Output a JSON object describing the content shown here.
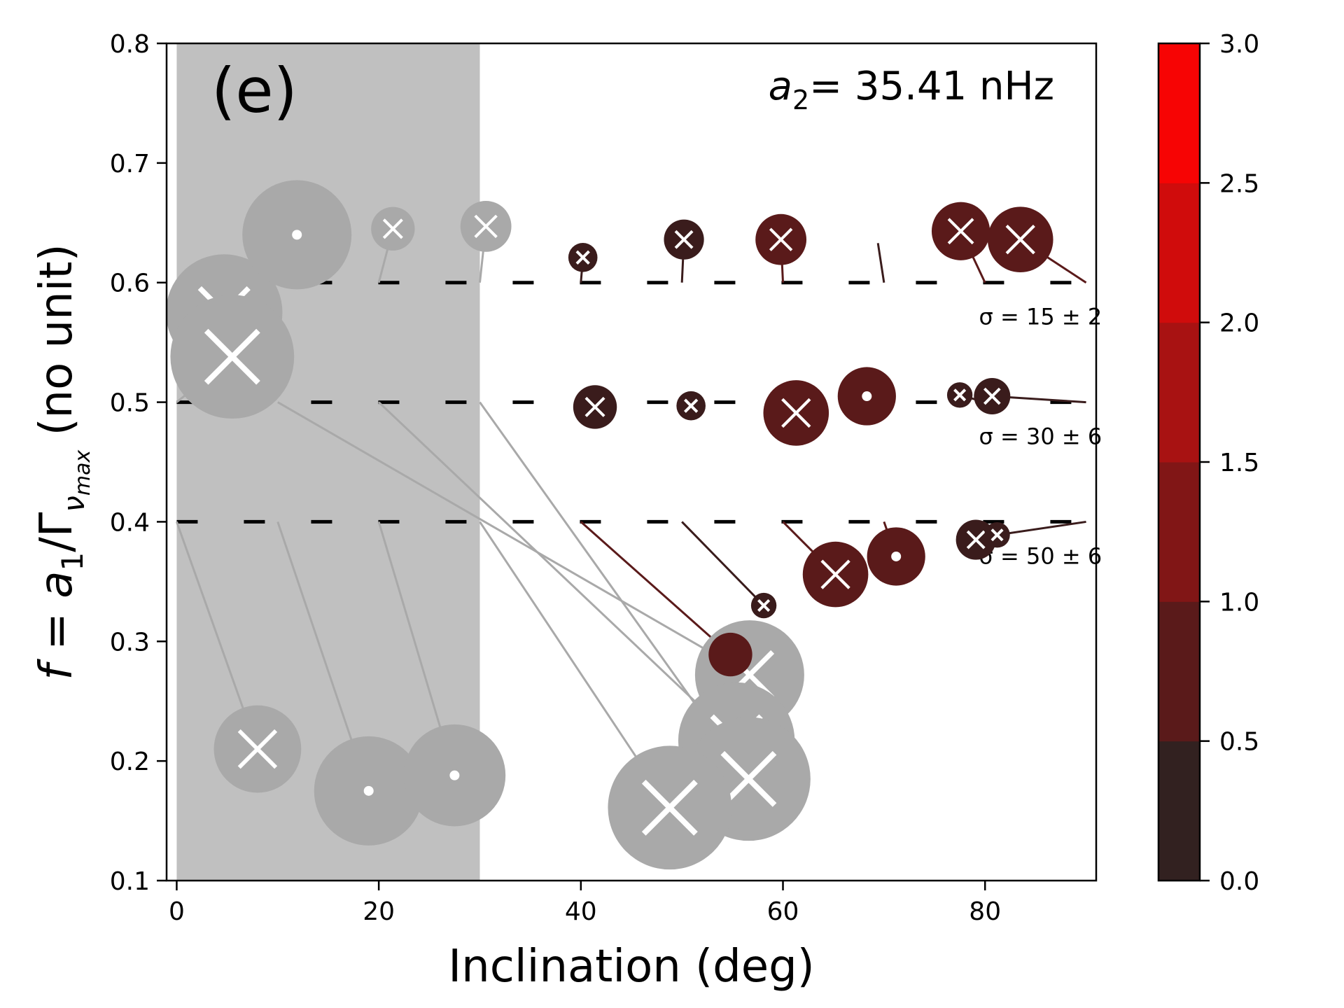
{
  "chart_data": {
    "type": "scatter",
    "panel_label": "(e)",
    "parameter_label": {
      "symbol": "a",
      "subscript": "2",
      "text": "= 35.41 nHz"
    },
    "xlabel": "Inclination (deg)",
    "ylabel": {
      "prefix": "f = a",
      "sub1": "1",
      "mid": "/Γ",
      "sub2": "ν",
      "sub3": "max",
      "suffix": "  (no unit)"
    },
    "xlim": [
      -1,
      91
    ],
    "ylim": [
      0.1,
      0.8
    ],
    "xticks": [
      "0",
      "20",
      "40",
      "60",
      "80"
    ],
    "yticks": [
      "0.1",
      "0.2",
      "0.3",
      "0.4",
      "0.5",
      "0.6",
      "0.7",
      "0.8"
    ],
    "excluded_region": {
      "x_start": 0,
      "x_end": 30,
      "color": "#c0c0c0"
    },
    "reference_lines": [
      {
        "y": 0.6,
        "label": "σ = 15 ± 2"
      },
      {
        "y": 0.5,
        "label": "σ = 30 ± 6"
      },
      {
        "y": 0.4,
        "label": "σ = 50 ± 6"
      }
    ],
    "colorbar": {
      "range": [
        0,
        3
      ],
      "ticks": [
        "0.0",
        "0.5",
        "1.0",
        "1.5",
        "2.0",
        "2.5",
        "3.0"
      ],
      "colors": [
        "#322120",
        "#5a1a1a",
        "#811616",
        "#a81212",
        "#d00c0c",
        "#f70404"
      ]
    },
    "points": [
      {
        "true_x": 0,
        "true_y": 0.6,
        "x": 4.7,
        "y": 0.575,
        "size": 3.2,
        "marker": "x",
        "color": "#a9a9a9"
      },
      {
        "true_x": 0,
        "true_y": 0.5,
        "x": 5.5,
        "y": 0.538,
        "size": 3.4,
        "marker": "x",
        "color": "#a9a9a9"
      },
      {
        "true_x": 0,
        "true_y": 0.4,
        "x": 8.0,
        "y": 0.21,
        "size": 2.4,
        "marker": "x",
        "color": "#a9a9a9"
      },
      {
        "true_x": 10,
        "true_y": 0.6,
        "x": 11.9,
        "y": 0.64,
        "size": 3.0,
        "marker": "dot",
        "color": "#a9a9a9"
      },
      {
        "true_x": 10,
        "true_y": 0.5,
        "x": 56.7,
        "y": 0.272,
        "size": 3.0,
        "marker": "x",
        "color": "#a9a9a9"
      },
      {
        "true_x": 10,
        "true_y": 0.4,
        "x": 19.0,
        "y": 0.175,
        "size": 3.0,
        "marker": "dot",
        "color": "#a9a9a9"
      },
      {
        "true_x": 20,
        "true_y": 0.6,
        "x": 21.4,
        "y": 0.645,
        "size": 1.2,
        "marker": "x",
        "color": "#a9a9a9"
      },
      {
        "true_x": 20,
        "true_y": 0.5,
        "x": 55.4,
        "y": 0.217,
        "size": 3.2,
        "marker": "x",
        "color": "#a9a9a9"
      },
      {
        "true_x": 20,
        "true_y": 0.4,
        "x": 27.5,
        "y": 0.188,
        "size": 2.8,
        "marker": "dot",
        "color": "#a9a9a9"
      },
      {
        "true_x": 30,
        "true_y": 0.6,
        "x": 30.6,
        "y": 0.647,
        "size": 1.4,
        "marker": "x",
        "color": "#a9a9a9"
      },
      {
        "true_x": 30,
        "true_y": 0.5,
        "x": 56.6,
        "y": 0.185,
        "size": 3.4,
        "marker": "x",
        "color": "#a9a9a9"
      },
      {
        "true_x": 30,
        "true_y": 0.4,
        "x": 48.8,
        "y": 0.161,
        "size": 3.4,
        "marker": "x",
        "color": "#a9a9a9"
      },
      {
        "true_x": 40,
        "true_y": 0.6,
        "x": 40.2,
        "y": 0.621,
        "size": 0.8,
        "marker": "x",
        "color": "#3a1c1c"
      },
      {
        "true_x": 40,
        "true_y": 0.5,
        "x": 41.4,
        "y": 0.496,
        "size": 1.2,
        "marker": "x",
        "color": "#3a1c1c"
      },
      {
        "true_x": 40,
        "true_y": 0.4,
        "x": 54.8,
        "y": 0.289,
        "size": 1.2,
        "marker": "none",
        "color": "#5a1a1a"
      },
      {
        "true_x": 50,
        "true_y": 0.6,
        "x": 50.2,
        "y": 0.636,
        "size": 1.1,
        "marker": "x",
        "color": "#3a1c1c"
      },
      {
        "true_x": 50,
        "true_y": 0.5,
        "x": 50.9,
        "y": 0.497,
        "size": 0.8,
        "marker": "x",
        "color": "#3a1c1c"
      },
      {
        "true_x": 50,
        "true_y": 0.4,
        "x": 58.1,
        "y": 0.33,
        "size": 0.7,
        "marker": "x",
        "color": "#3a1c1c"
      },
      {
        "true_x": 60,
        "true_y": 0.6,
        "x": 59.8,
        "y": 0.636,
        "size": 1.4,
        "marker": "x",
        "color": "#5a1a1a"
      },
      {
        "true_x": 60,
        "true_y": 0.5,
        "x": 61.3,
        "y": 0.491,
        "size": 1.8,
        "marker": "x",
        "color": "#5a1a1a"
      },
      {
        "true_x": 60,
        "true_y": 0.4,
        "x": 65.2,
        "y": 0.356,
        "size": 1.8,
        "marker": "x",
        "color": "#5a1a1a"
      },
      {
        "true_x": 70,
        "true_y": 0.6,
        "x": 69.4,
        "y": 0.633,
        "size": 0.0,
        "marker": "none",
        "color": "#3a1c1c"
      },
      {
        "true_x": 70,
        "true_y": 0.5,
        "x": 68.3,
        "y": 0.505,
        "size": 1.6,
        "marker": "dot",
        "color": "#5a1a1a"
      },
      {
        "true_x": 70,
        "true_y": 0.4,
        "x": 71.2,
        "y": 0.371,
        "size": 1.6,
        "marker": "dot",
        "color": "#5a1a1a"
      },
      {
        "true_x": 80,
        "true_y": 0.6,
        "x": 77.6,
        "y": 0.643,
        "size": 1.6,
        "marker": "x",
        "color": "#5a1a1a"
      },
      {
        "true_x": 80,
        "true_y": 0.5,
        "x": 77.5,
        "y": 0.506,
        "size": 0.7,
        "marker": "x",
        "color": "#3a1c1c"
      },
      {
        "true_x": 80,
        "true_y": 0.4,
        "x": 79.1,
        "y": 0.385,
        "size": 1.1,
        "marker": "x",
        "color": "#3a1c1c"
      },
      {
        "true_x": 90,
        "true_y": 0.6,
        "x": 83.5,
        "y": 0.636,
        "size": 1.8,
        "marker": "x",
        "color": "#5a1a1a"
      },
      {
        "true_x": 90,
        "true_y": 0.5,
        "x": 80.7,
        "y": 0.505,
        "size": 1.0,
        "marker": "x",
        "color": "#3a1c1c"
      },
      {
        "true_x": 90,
        "true_y": 0.4,
        "x": 81.2,
        "y": 0.389,
        "size": 0.7,
        "marker": "x",
        "color": "#3a1c1c"
      }
    ]
  }
}
